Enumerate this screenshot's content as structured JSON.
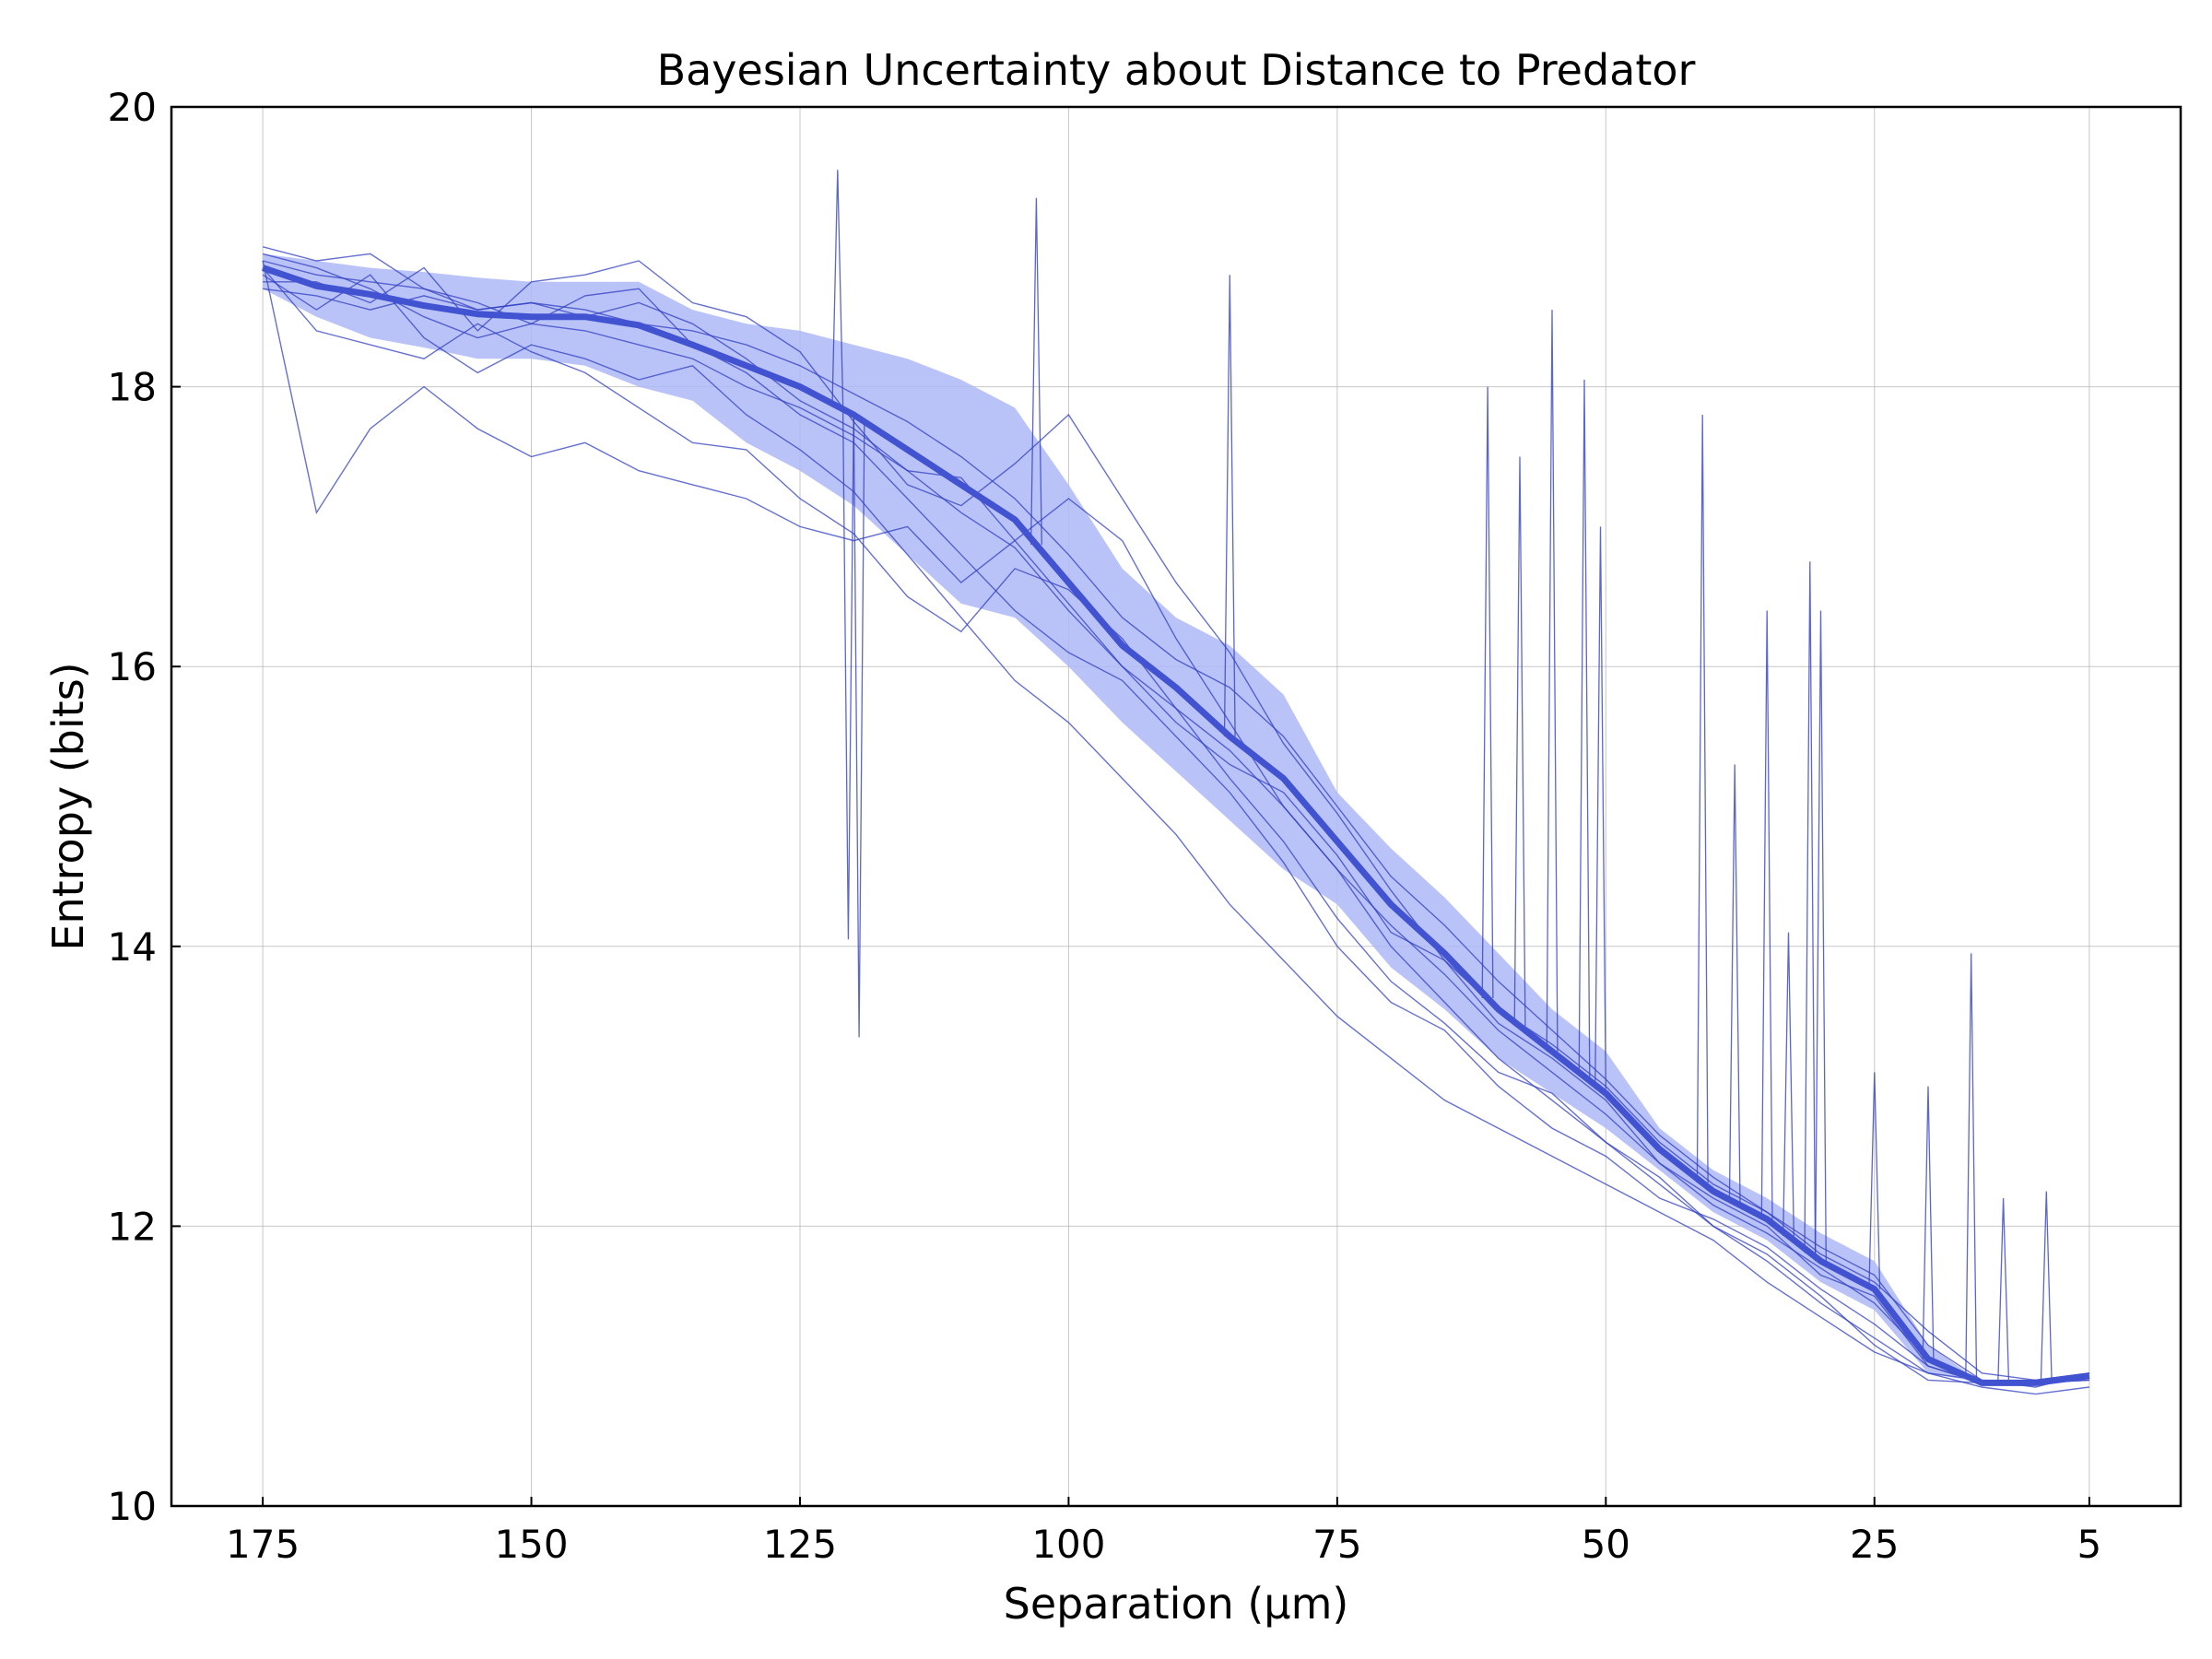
{
  "chart_data": {
    "type": "line",
    "title": "Bayesian Uncertainty about Distance to Predator",
    "xlabel": "Separation (μm)",
    "ylabel": "Entropy (bits)",
    "x_reversed": true,
    "xlim": [
      183.5,
      -3.5
    ],
    "ylim": [
      10,
      20
    ],
    "xticks": [
      175,
      150,
      125,
      100,
      75,
      50,
      25,
      5
    ],
    "yticks": [
      10,
      12,
      14,
      16,
      18,
      20
    ],
    "grid": true,
    "legend": "none",
    "colors": {
      "mean_line": "#4253d1",
      "band_fill": "#aeb8f7",
      "trial_lines": "#3240c2"
    },
    "mean": {
      "x": [
        175,
        170,
        165,
        160,
        155,
        150,
        145,
        140,
        135,
        130,
        125,
        120,
        115,
        110,
        105,
        100,
        95,
        90,
        85,
        80,
        75,
        70,
        65,
        60,
        55,
        50,
        45,
        40,
        35,
        30,
        25,
        20,
        15,
        10,
        5
      ],
      "y": [
        18.85,
        18.72,
        18.66,
        18.58,
        18.52,
        18.5,
        18.5,
        18.44,
        18.3,
        18.15,
        18.0,
        17.8,
        17.55,
        17.3,
        17.05,
        16.6,
        16.15,
        15.85,
        15.5,
        15.2,
        14.75,
        14.3,
        13.95,
        13.55,
        13.25,
        12.95,
        12.55,
        12.25,
        12.05,
        11.75,
        11.55,
        11.05,
        10.88,
        10.88,
        10.93
      ]
    },
    "band": {
      "x": [
        175,
        170,
        165,
        160,
        155,
        150,
        145,
        140,
        135,
        130,
        125,
        120,
        115,
        110,
        105,
        100,
        95,
        90,
        85,
        80,
        75,
        70,
        65,
        60,
        55,
        50,
        45,
        40,
        35,
        30,
        25,
        20,
        15,
        10,
        5
      ],
      "lower": [
        18.7,
        18.5,
        18.35,
        18.28,
        18.2,
        18.2,
        18.15,
        18.0,
        17.9,
        17.6,
        17.4,
        17.15,
        16.8,
        16.45,
        16.35,
        16.0,
        15.6,
        15.25,
        14.9,
        14.55,
        14.3,
        13.85,
        13.55,
        13.2,
        12.95,
        12.7,
        12.4,
        12.1,
        11.9,
        11.6,
        11.4,
        10.95,
        10.88,
        10.88,
        10.93
      ],
      "upper": [
        18.95,
        18.9,
        18.85,
        18.82,
        18.78,
        18.75,
        18.75,
        18.75,
        18.55,
        18.45,
        18.4,
        18.3,
        18.2,
        18.05,
        17.85,
        17.3,
        16.7,
        16.35,
        16.15,
        15.8,
        15.1,
        14.7,
        14.35,
        13.95,
        13.55,
        13.25,
        12.7,
        12.4,
        12.2,
        11.95,
        11.75,
        11.15,
        10.88,
        10.88,
        10.93
      ]
    },
    "trials": [
      {
        "x": [
          175,
          170,
          165,
          160,
          155,
          150,
          145,
          140,
          135,
          130,
          125,
          120,
          115,
          110,
          105,
          100,
          95,
          90,
          85,
          80,
          75,
          70,
          65,
          60,
          55,
          50,
          45,
          40,
          35,
          30,
          25,
          20,
          15,
          10,
          5
        ],
        "y": [
          19.0,
          18.9,
          18.95,
          18.7,
          18.55,
          18.6,
          18.5,
          18.6,
          18.45,
          18.2,
          17.9,
          17.7,
          17.4,
          17.35,
          16.9,
          16.45,
          16.0,
          15.6,
          15.3,
          15.1,
          14.65,
          14.1,
          13.9,
          13.45,
          13.2,
          12.9,
          12.45,
          12.2,
          12.0,
          11.65,
          11.5,
          11.0,
          10.88,
          10.9,
          10.95
        ]
      },
      {
        "x": [
          175,
          170,
          165,
          160,
          155,
          150,
          145,
          140,
          135,
          130,
          125,
          120,
          115,
          110,
          105,
          100,
          95,
          90,
          85,
          80,
          75,
          70,
          65,
          60,
          55,
          50,
          45,
          40,
          35,
          30,
          25,
          20,
          15,
          10,
          5
        ],
        "y": [
          18.85,
          18.4,
          18.3,
          18.2,
          18.45,
          18.25,
          18.1,
          17.85,
          17.6,
          17.55,
          17.2,
          16.95,
          16.5,
          16.25,
          16.7,
          16.55,
          16.2,
          15.7,
          15.2,
          14.75,
          14.2,
          13.75,
          13.45,
          13.1,
          12.95,
          12.6,
          12.35,
          12.0,
          11.75,
          11.45,
          11.2,
          10.95,
          10.9,
          10.88,
          10.92
        ]
      },
      {
        "x": [
          175,
          170,
          165,
          160,
          155,
          150,
          145,
          140,
          135,
          130,
          125,
          120,
          115,
          110,
          105,
          100,
          95,
          90,
          85,
          80,
          75,
          70,
          65,
          60,
          55,
          50,
          45,
          40,
          35,
          30,
          25,
          20,
          15,
          10,
          5
        ],
        "y": [
          18.9,
          17.1,
          17.7,
          18.0,
          17.7,
          17.5,
          17.6,
          17.4,
          17.3,
          17.2,
          17.0,
          16.9,
          17.0,
          16.6,
          16.9,
          17.2,
          16.9,
          16.2,
          15.6,
          15.0,
          14.55,
          14.0,
          13.6,
          13.2,
          12.9,
          12.6,
          12.3,
          12.0,
          11.8,
          11.5,
          11.15,
          10.9,
          10.88,
          10.88,
          10.9
        ]
      },
      {
        "x": [
          175,
          170,
          165,
          160,
          155,
          150,
          145,
          140,
          135,
          130,
          125,
          120,
          115,
          110,
          105,
          100,
          95,
          90,
          85,
          80,
          75,
          70,
          65,
          60,
          55,
          50,
          45,
          40,
          35,
          30,
          25,
          20,
          15,
          10,
          5
        ],
        "y": [
          18.75,
          18.75,
          18.6,
          18.85,
          18.4,
          18.75,
          18.8,
          18.9,
          18.6,
          18.5,
          18.25,
          17.75,
          17.3,
          17.15,
          17.45,
          17.8,
          17.2,
          16.6,
          16.1,
          15.45,
          14.95,
          14.4,
          13.9,
          13.55,
          13.3,
          13.0,
          12.6,
          12.3,
          12.1,
          11.8,
          11.6,
          11.25,
          10.95,
          10.9,
          10.95
        ]
      },
      {
        "x": [
          175,
          170,
          165,
          160,
          155,
          150,
          145,
          140,
          135,
          130,
          125,
          120,
          115,
          110,
          105,
          100,
          95,
          90,
          85,
          80,
          75,
          70,
          65,
          60,
          55,
          50,
          45,
          40,
          35,
          30,
          25,
          20,
          15,
          10,
          5
        ],
        "y": [
          18.95,
          18.85,
          18.7,
          18.5,
          18.35,
          18.45,
          18.65,
          18.7,
          18.3,
          18.1,
          17.8,
          17.6,
          17.2,
          16.8,
          16.4,
          16.1,
          15.9,
          15.5,
          15.1,
          14.6,
          14.0,
          13.6,
          13.4,
          13.0,
          12.7,
          12.5,
          12.2,
          12.05,
          11.85,
          11.55,
          11.3,
          11.0,
          10.88,
          10.88,
          10.9
        ]
      },
      {
        "x": [
          175,
          170,
          165,
          160,
          155,
          150,
          145,
          140,
          135,
          130,
          125,
          120,
          115,
          110,
          105,
          100,
          95,
          90,
          85,
          80,
          75,
          70,
          65,
          60,
          55,
          50,
          45,
          40,
          35,
          30,
          25,
          20,
          15,
          10,
          5
        ],
        "y": [
          18.8,
          18.55,
          18.8,
          18.35,
          18.1,
          18.3,
          18.2,
          18.05,
          18.15,
          17.8,
          17.55,
          17.25,
          16.8,
          16.35,
          15.9,
          15.6,
          15.2,
          14.8,
          14.3,
          13.9,
          13.5,
          13.2,
          12.9,
          12.7,
          12.5,
          12.3,
          12.1,
          11.9,
          11.6,
          11.35,
          11.1,
          10.95,
          10.85,
          10.8,
          10.85
        ]
      },
      {
        "x": [
          175,
          170,
          165,
          160,
          155,
          150,
          145,
          140,
          135,
          130,
          125,
          120,
          115,
          110,
          105,
          100,
          95,
          90,
          85,
          80,
          75,
          70,
          65,
          60,
          55,
          50,
          45,
          40,
          35,
          30,
          25,
          20,
          15,
          10,
          5
        ],
        "y": [
          18.7,
          18.65,
          18.55,
          18.65,
          18.55,
          18.6,
          18.55,
          18.45,
          18.4,
          18.3,
          18.15,
          17.95,
          17.75,
          17.5,
          17.2,
          16.8,
          16.35,
          16.05,
          15.85,
          15.5,
          15.0,
          14.5,
          14.15,
          13.75,
          13.4,
          13.05,
          12.65,
          12.35,
          12.1,
          11.85,
          11.65,
          11.15,
          10.9,
          10.85,
          10.95
        ]
      },
      {
        "x": [
          175,
          170,
          165,
          160,
          155,
          150,
          145,
          140,
          135,
          130,
          125,
          120,
          115,
          110,
          105,
          100,
          95,
          90,
          85,
          80,
          75,
          70,
          65,
          60,
          55,
          50,
          45,
          40,
          35,
          30,
          25,
          20,
          15,
          10,
          5
        ],
        "y": [
          18.9,
          18.8,
          18.75,
          18.7,
          18.6,
          18.45,
          18.4,
          18.3,
          18.2,
          18.0,
          17.85,
          17.65,
          17.4,
          17.1,
          16.85,
          16.4,
          16.0,
          15.7,
          15.4,
          15.0,
          14.55,
          14.15,
          13.8,
          13.4,
          13.1,
          12.8,
          12.45,
          12.15,
          11.95,
          11.7,
          11.45,
          11.05,
          10.88,
          10.9,
          10.92
        ]
      }
    ],
    "spikes": [
      {
        "x": 121.5,
        "y": 19.55
      },
      {
        "x": 120.5,
        "y": 14.05
      },
      {
        "x": 119.5,
        "y": 13.35
      },
      {
        "x": 103,
        "y": 19.35
      },
      {
        "x": 85,
        "y": 18.8
      },
      {
        "x": 61,
        "y": 18.0
      },
      {
        "x": 58,
        "y": 17.5
      },
      {
        "x": 55,
        "y": 18.55
      },
      {
        "x": 52,
        "y": 18.05
      },
      {
        "x": 50.5,
        "y": 17.0
      },
      {
        "x": 41,
        "y": 17.8
      },
      {
        "x": 38,
        "y": 15.3
      },
      {
        "x": 35,
        "y": 16.4
      },
      {
        "x": 33,
        "y": 14.1
      },
      {
        "x": 31,
        "y": 16.75
      },
      {
        "x": 30,
        "y": 16.4
      },
      {
        "x": 25,
        "y": 13.1
      },
      {
        "x": 20,
        "y": 13.0
      },
      {
        "x": 16,
        "y": 13.95
      },
      {
        "x": 13,
        "y": 12.2
      },
      {
        "x": 9,
        "y": 12.25
      }
    ]
  }
}
